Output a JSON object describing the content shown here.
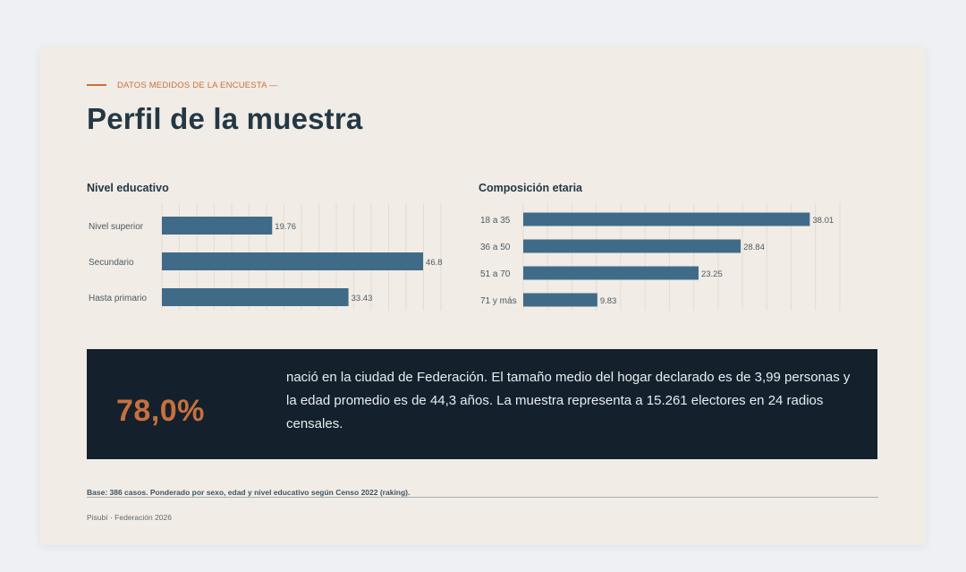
{
  "eyebrow": "DATOS MEDIDOS DE LA ENCUESTA —",
  "title": "Perfil de la muestra",
  "chart_data": [
    {
      "type": "bar",
      "orientation": "horizontal",
      "title": "Nivel educativo",
      "categories": [
        "Nivel superior",
        "Secundario",
        "Hasta primario"
      ],
      "values": [
        19.76,
        46.8,
        33.43
      ],
      "value_labels": [
        "19.76",
        "46.8",
        "33.43"
      ],
      "xlim": [
        0,
        50
      ],
      "grid": true,
      "bar_color": "#3f6b88"
    },
    {
      "type": "bar",
      "orientation": "horizontal",
      "title": "Composición etaria",
      "categories": [
        "18 a 35",
        "36 a 50",
        "51 a 70",
        "71 y más"
      ],
      "values": [
        38.01,
        28.84,
        23.25,
        9.83
      ],
      "value_labels": [
        "38.01",
        "28.84",
        "23.25",
        "9.83"
      ],
      "xlim": [
        0,
        42
      ],
      "grid": true,
      "bar_color": "#3f6b88"
    }
  ],
  "callout": {
    "percent": "78,0%",
    "text": "nació en la ciudad de Federación. El tamaño medio del hogar declarado es de 3,99 personas y la edad promedio es de 44,3 años. La muestra representa a 15.261 electores en 24 radios censales."
  },
  "base_note": "Base: 386 casos. Ponderado por sexo, edad y nivel educativo según Censo 2022 (raking).",
  "footer": "Pisubí · Federación 2026",
  "colors": {
    "accent": "#c8703e",
    "heading": "#233845",
    "bar": "#3f6b88",
    "callout_bg": "#14212d",
    "slide_bg": "#f1ece5"
  }
}
